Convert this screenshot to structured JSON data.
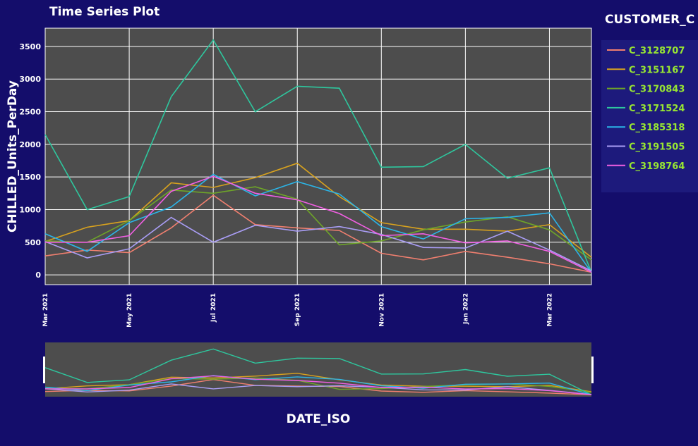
{
  "chart_data": {
    "type": "line",
    "title": "Time Series Plot",
    "xlabel": "DATE_ISO",
    "ylabel": "CHILLED_Units_PerDay",
    "ylim": [
      -150,
      3780
    ],
    "yticks": [
      0,
      500,
      1000,
      1500,
      2000,
      2500,
      3000,
      3500
    ],
    "x": [
      "2021-03",
      "2021-04",
      "2021-05",
      "2021-06",
      "2021-07",
      "2021-08",
      "2021-09",
      "2021-10",
      "2021-11",
      "2021-12",
      "2022-01",
      "2022-02",
      "2022-03",
      "2022-04"
    ],
    "xtick_labels": [
      {
        "x": "2021-03",
        "label": "Mar 2021"
      },
      {
        "x": "2021-05",
        "label": "May 2021"
      },
      {
        "x": "2021-07",
        "label": "Jul 2021"
      },
      {
        "x": "2021-09",
        "label": "Sep 2021"
      },
      {
        "x": "2021-11",
        "label": "Nov 2021"
      },
      {
        "x": "2022-01",
        "label": "Jan 2022"
      },
      {
        "x": "2022-03",
        "label": "Mar 2022"
      }
    ],
    "grid": true,
    "legend": {
      "title": "CUSTOMER_C",
      "placement": "right"
    },
    "series": [
      {
        "name": "C_3128707",
        "color": "#f07f6f",
        "values": [
          290,
          380,
          340,
          720,
          1220,
          770,
          720,
          680,
          330,
          230,
          360,
          270,
          170,
          40
        ]
      },
      {
        "name": "C_3151167",
        "color": "#d8a21e",
        "values": [
          510,
          730,
          830,
          1410,
          1340,
          1490,
          1710,
          1200,
          800,
          700,
          700,
          670,
          770,
          270
        ]
      },
      {
        "name": "C_3170843",
        "color": "#6ea528",
        "values": [
          520,
          500,
          830,
          1300,
          1250,
          1350,
          1160,
          460,
          520,
          690,
          810,
          890,
          690,
          230
        ]
      },
      {
        "name": "C_3171524",
        "color": "#2ec79e",
        "values": [
          2150,
          1000,
          1200,
          2730,
          3600,
          2500,
          2890,
          2860,
          1650,
          1660,
          2000,
          1480,
          1640,
          40
        ]
      },
      {
        "name": "C_3185318",
        "color": "#2bb5e8",
        "values": [
          630,
          360,
          800,
          1040,
          1540,
          1210,
          1430,
          1240,
          740,
          550,
          860,
          880,
          950,
          40
        ]
      },
      {
        "name": "C_3191505",
        "color": "#a99df5",
        "values": [
          510,
          260,
          400,
          880,
          500,
          760,
          670,
          740,
          620,
          420,
          410,
          670,
          380,
          60
        ]
      },
      {
        "name": "C_3198764",
        "color": "#f15fe3",
        "values": [
          500,
          500,
          600,
          1280,
          1510,
          1250,
          1150,
          940,
          600,
          630,
          490,
          520,
          360,
          40
        ]
      }
    ]
  },
  "colors": {
    "page_background": "#140d6b",
    "plot_background": "#4d4d4d",
    "grid": "#ffffff",
    "legend_label": "#98e632",
    "legend_background": "#1d1a7c"
  }
}
